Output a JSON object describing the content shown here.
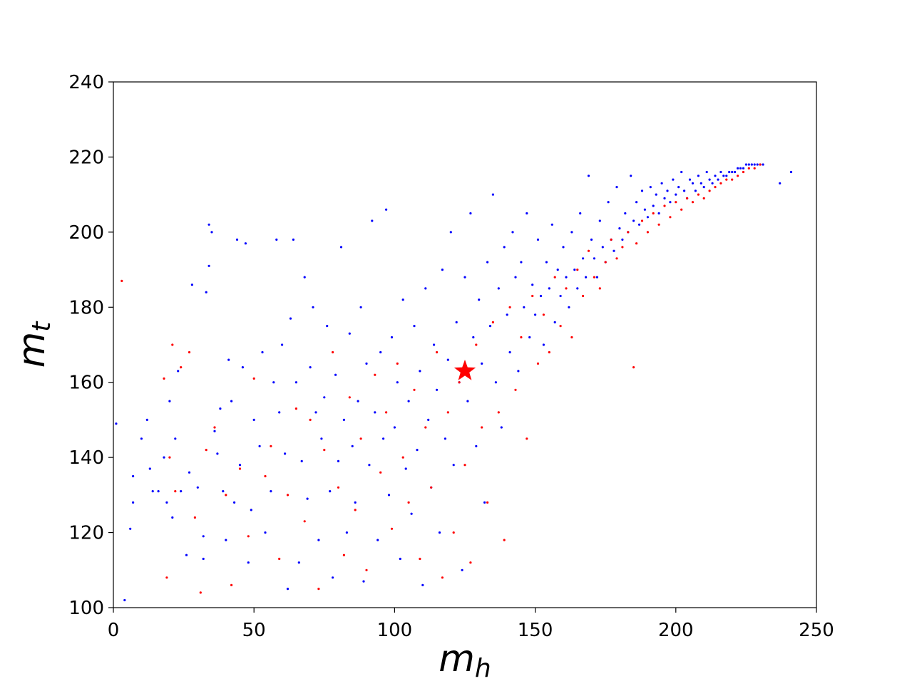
{
  "chart_data": {
    "type": "scatter",
    "xlabel": "m",
    "xlabel_sub": "h",
    "ylabel": "m",
    "ylabel_sub": "t",
    "xlim": [
      0,
      250
    ],
    "ylim": [
      100,
      240
    ],
    "xticks": [
      0,
      50,
      100,
      150,
      200,
      250
    ],
    "yticks": [
      100,
      120,
      140,
      160,
      180,
      200,
      220,
      240
    ],
    "grid": false,
    "colors": {
      "series_a": "#0000ff",
      "series_b": "#ff0000",
      "marker": "#ff0000"
    },
    "marker_point": {
      "x": 125,
      "y": 163,
      "shape": "star"
    },
    "series": [
      {
        "color": "#0000ff",
        "points": [
          [
            1,
            149
          ],
          [
            4,
            102
          ],
          [
            6,
            121
          ],
          [
            7,
            135
          ],
          [
            7,
            128
          ],
          [
            10,
            145
          ],
          [
            12,
            150
          ],
          [
            13,
            137
          ],
          [
            14,
            131
          ],
          [
            16,
            131
          ],
          [
            18,
            140
          ],
          [
            19,
            128
          ],
          [
            20,
            155
          ],
          [
            21,
            124
          ],
          [
            22,
            145
          ],
          [
            23,
            163
          ],
          [
            24,
            131
          ],
          [
            26,
            114
          ],
          [
            27,
            136
          ],
          [
            28,
            186
          ],
          [
            30,
            132
          ],
          [
            32,
            119
          ],
          [
            32,
            113
          ],
          [
            33,
            184
          ],
          [
            34,
            191
          ],
          [
            34,
            202
          ],
          [
            35,
            200
          ],
          [
            36,
            147
          ],
          [
            37,
            141
          ],
          [
            38,
            153
          ],
          [
            39,
            131
          ],
          [
            40,
            118
          ],
          [
            41,
            166
          ],
          [
            42,
            155
          ],
          [
            43,
            128
          ],
          [
            44,
            198
          ],
          [
            45,
            138
          ],
          [
            46,
            164
          ],
          [
            47,
            197
          ],
          [
            48,
            112
          ],
          [
            49,
            126
          ],
          [
            50,
            150
          ],
          [
            52,
            143
          ],
          [
            53,
            168
          ],
          [
            54,
            120
          ],
          [
            56,
            131
          ],
          [
            57,
            160
          ],
          [
            58,
            198
          ],
          [
            59,
            152
          ],
          [
            60,
            170
          ],
          [
            61,
            141
          ],
          [
            62,
            105
          ],
          [
            63,
            177
          ],
          [
            64,
            198
          ],
          [
            65,
            160
          ],
          [
            66,
            112
          ],
          [
            67,
            139
          ],
          [
            68,
            188
          ],
          [
            69,
            129
          ],
          [
            70,
            164
          ],
          [
            71,
            180
          ],
          [
            72,
            152
          ],
          [
            73,
            118
          ],
          [
            74,
            145
          ],
          [
            75,
            156
          ],
          [
            76,
            175
          ],
          [
            77,
            131
          ],
          [
            78,
            108
          ],
          [
            79,
            162
          ],
          [
            80,
            139
          ],
          [
            81,
            196
          ],
          [
            82,
            150
          ],
          [
            83,
            120
          ],
          [
            84,
            173
          ],
          [
            85,
            143
          ],
          [
            86,
            128
          ],
          [
            87,
            155
          ],
          [
            88,
            180
          ],
          [
            89,
            107
          ],
          [
            90,
            165
          ],
          [
            91,
            138
          ],
          [
            92,
            203
          ],
          [
            93,
            152
          ],
          [
            94,
            118
          ],
          [
            95,
            168
          ],
          [
            96,
            145
          ],
          [
            97,
            206
          ],
          [
            98,
            130
          ],
          [
            99,
            172
          ],
          [
            100,
            148
          ],
          [
            101,
            160
          ],
          [
            102,
            113
          ],
          [
            103,
            182
          ],
          [
            104,
            137
          ],
          [
            105,
            155
          ],
          [
            106,
            125
          ],
          [
            107,
            175
          ],
          [
            108,
            142
          ],
          [
            109,
            163
          ],
          [
            110,
            106
          ],
          [
            111,
            185
          ],
          [
            112,
            150
          ],
          [
            113,
            132
          ],
          [
            114,
            170
          ],
          [
            115,
            158
          ],
          [
            116,
            120
          ],
          [
            117,
            190
          ],
          [
            118,
            145
          ],
          [
            119,
            166
          ],
          [
            120,
            200
          ],
          [
            121,
            138
          ],
          [
            122,
            176
          ],
          [
            123,
            160
          ],
          [
            124,
            110
          ],
          [
            125,
            188
          ],
          [
            126,
            155
          ],
          [
            127,
            205
          ],
          [
            128,
            172
          ],
          [
            129,
            143
          ],
          [
            130,
            182
          ],
          [
            131,
            165
          ],
          [
            132,
            128
          ],
          [
            133,
            192
          ],
          [
            134,
            175
          ],
          [
            135,
            210
          ],
          [
            136,
            160
          ],
          [
            137,
            185
          ],
          [
            138,
            148
          ],
          [
            139,
            196
          ],
          [
            140,
            178
          ],
          [
            141,
            168
          ],
          [
            142,
            200
          ],
          [
            143,
            188
          ],
          [
            144,
            163
          ],
          [
            145,
            192
          ],
          [
            146,
            180
          ],
          [
            147,
            205
          ],
          [
            148,
            172
          ],
          [
            149,
            186
          ],
          [
            150,
            178
          ],
          [
            151,
            198
          ],
          [
            152,
            183
          ],
          [
            153,
            170
          ],
          [
            154,
            192
          ],
          [
            155,
            185
          ],
          [
            156,
            202
          ],
          [
            157,
            176
          ],
          [
            158,
            190
          ],
          [
            159,
            183
          ],
          [
            160,
            196
          ],
          [
            161,
            188
          ],
          [
            162,
            180
          ],
          [
            163,
            200
          ],
          [
            164,
            190
          ],
          [
            165,
            185
          ],
          [
            166,
            205
          ],
          [
            167,
            193
          ],
          [
            168,
            188
          ],
          [
            169,
            215
          ],
          [
            170,
            198
          ],
          [
            171,
            193
          ],
          [
            172,
            188
          ],
          [
            173,
            203
          ],
          [
            174,
            196
          ],
          [
            175,
            192
          ],
          [
            176,
            208
          ],
          [
            177,
            198
          ],
          [
            178,
            195
          ],
          [
            179,
            212
          ],
          [
            180,
            201
          ],
          [
            181,
            198
          ],
          [
            182,
            205
          ],
          [
            183,
            200
          ],
          [
            184,
            215
          ],
          [
            185,
            203
          ],
          [
            186,
            208
          ],
          [
            187,
            202
          ],
          [
            188,
            211
          ],
          [
            189,
            206
          ],
          [
            190,
            204
          ],
          [
            191,
            212
          ],
          [
            192,
            207
          ],
          [
            193,
            210
          ],
          [
            194,
            205
          ],
          [
            195,
            213
          ],
          [
            196,
            209
          ],
          [
            197,
            211
          ],
          [
            198,
            208
          ],
          [
            199,
            214
          ],
          [
            200,
            210
          ],
          [
            201,
            212
          ],
          [
            202,
            216
          ],
          [
            203,
            211
          ],
          [
            204,
            209
          ],
          [
            205,
            214
          ],
          [
            206,
            213
          ],
          [
            207,
            211
          ],
          [
            208,
            215
          ],
          [
            209,
            213
          ],
          [
            210,
            212
          ],
          [
            211,
            216
          ],
          [
            212,
            214
          ],
          [
            213,
            213
          ],
          [
            214,
            215
          ],
          [
            215,
            214
          ],
          [
            216,
            216
          ],
          [
            217,
            215
          ],
          [
            218,
            215
          ],
          [
            219,
            216
          ],
          [
            220,
            216
          ],
          [
            221,
            216
          ],
          [
            222,
            217
          ],
          [
            223,
            217
          ],
          [
            224,
            217
          ],
          [
            225,
            218
          ],
          [
            226,
            218
          ],
          [
            227,
            218
          ],
          [
            228,
            218
          ],
          [
            229,
            218
          ],
          [
            230,
            218
          ],
          [
            231,
            218
          ],
          [
            237,
            213
          ],
          [
            241,
            216
          ]
        ]
      },
      {
        "color": "#ff0000",
        "points": [
          [
            3,
            187
          ],
          [
            18,
            161
          ],
          [
            19,
            108
          ],
          [
            20,
            140
          ],
          [
            21,
            170
          ],
          [
            22,
            131
          ],
          [
            24,
            164
          ],
          [
            27,
            168
          ],
          [
            29,
            124
          ],
          [
            31,
            104
          ],
          [
            33,
            142
          ],
          [
            36,
            148
          ],
          [
            40,
            130
          ],
          [
            42,
            106
          ],
          [
            45,
            137
          ],
          [
            48,
            119
          ],
          [
            50,
            161
          ],
          [
            54,
            135
          ],
          [
            56,
            143
          ],
          [
            59,
            113
          ],
          [
            62,
            130
          ],
          [
            65,
            153
          ],
          [
            68,
            123
          ],
          [
            70,
            150
          ],
          [
            73,
            105
          ],
          [
            75,
            142
          ],
          [
            78,
            168
          ],
          [
            80,
            132
          ],
          [
            82,
            114
          ],
          [
            84,
            156
          ],
          [
            86,
            126
          ],
          [
            88,
            145
          ],
          [
            90,
            110
          ],
          [
            93,
            162
          ],
          [
            95,
            136
          ],
          [
            97,
            152
          ],
          [
            99,
            121
          ],
          [
            101,
            165
          ],
          [
            103,
            140
          ],
          [
            105,
            128
          ],
          [
            107,
            158
          ],
          [
            109,
            113
          ],
          [
            111,
            148
          ],
          [
            113,
            132
          ],
          [
            115,
            168
          ],
          [
            117,
            108
          ],
          [
            119,
            152
          ],
          [
            121,
            120
          ],
          [
            123,
            160
          ],
          [
            125,
            138
          ],
          [
            127,
            112
          ],
          [
            129,
            170
          ],
          [
            131,
            148
          ],
          [
            133,
            128
          ],
          [
            135,
            176
          ],
          [
            137,
            152
          ],
          [
            139,
            118
          ],
          [
            141,
            180
          ],
          [
            143,
            158
          ],
          [
            145,
            172
          ],
          [
            147,
            145
          ],
          [
            149,
            183
          ],
          [
            151,
            165
          ],
          [
            153,
            178
          ],
          [
            155,
            168
          ],
          [
            157,
            188
          ],
          [
            159,
            175
          ],
          [
            161,
            185
          ],
          [
            163,
            172
          ],
          [
            165,
            190
          ],
          [
            167,
            183
          ],
          [
            169,
            195
          ],
          [
            171,
            188
          ],
          [
            173,
            185
          ],
          [
            175,
            192
          ],
          [
            177,
            198
          ],
          [
            179,
            193
          ],
          [
            181,
            196
          ],
          [
            183,
            200
          ],
          [
            185,
            164
          ],
          [
            186,
            197
          ],
          [
            188,
            203
          ],
          [
            190,
            200
          ],
          [
            192,
            205
          ],
          [
            194,
            202
          ],
          [
            196,
            207
          ],
          [
            198,
            204
          ],
          [
            200,
            208
          ],
          [
            202,
            206
          ],
          [
            204,
            209
          ],
          [
            206,
            208
          ],
          [
            208,
            210
          ],
          [
            210,
            209
          ],
          [
            212,
            211
          ],
          [
            214,
            212
          ],
          [
            216,
            213
          ],
          [
            218,
            214
          ],
          [
            220,
            214
          ],
          [
            222,
            215
          ],
          [
            224,
            216
          ],
          [
            226,
            217
          ],
          [
            228,
            217
          ],
          [
            230,
            218
          ]
        ]
      }
    ]
  }
}
